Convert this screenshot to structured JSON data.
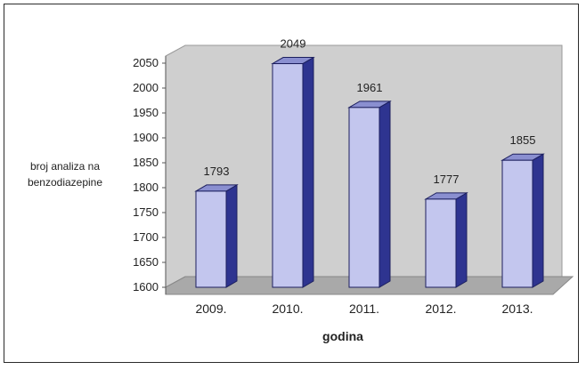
{
  "chart_data": {
    "type": "bar",
    "categories": [
      "2009.",
      "2010.",
      "2011.",
      "2012.",
      "2013."
    ],
    "values": [
      1793,
      2049,
      1961,
      1777,
      1855
    ],
    "data_labels": [
      "1793",
      "2049",
      "1961",
      "1777",
      "1855"
    ],
    "title": "",
    "xlabel": "godina",
    "ylabel": [
      "broj analiza na",
      "benzodiazepine"
    ],
    "ylim": [
      1600,
      2050
    ],
    "yticks": [
      1600,
      1650,
      1700,
      1750,
      1800,
      1850,
      1900,
      1950,
      2000,
      2050
    ],
    "grid": false,
    "style": "3d",
    "colors": {
      "bar_front": "#c3c6ee",
      "bar_side": "#2e3490",
      "bar_top": "#8a8fd0",
      "wall": "#cfcfcf",
      "floor": "#a9a9a9"
    }
  }
}
